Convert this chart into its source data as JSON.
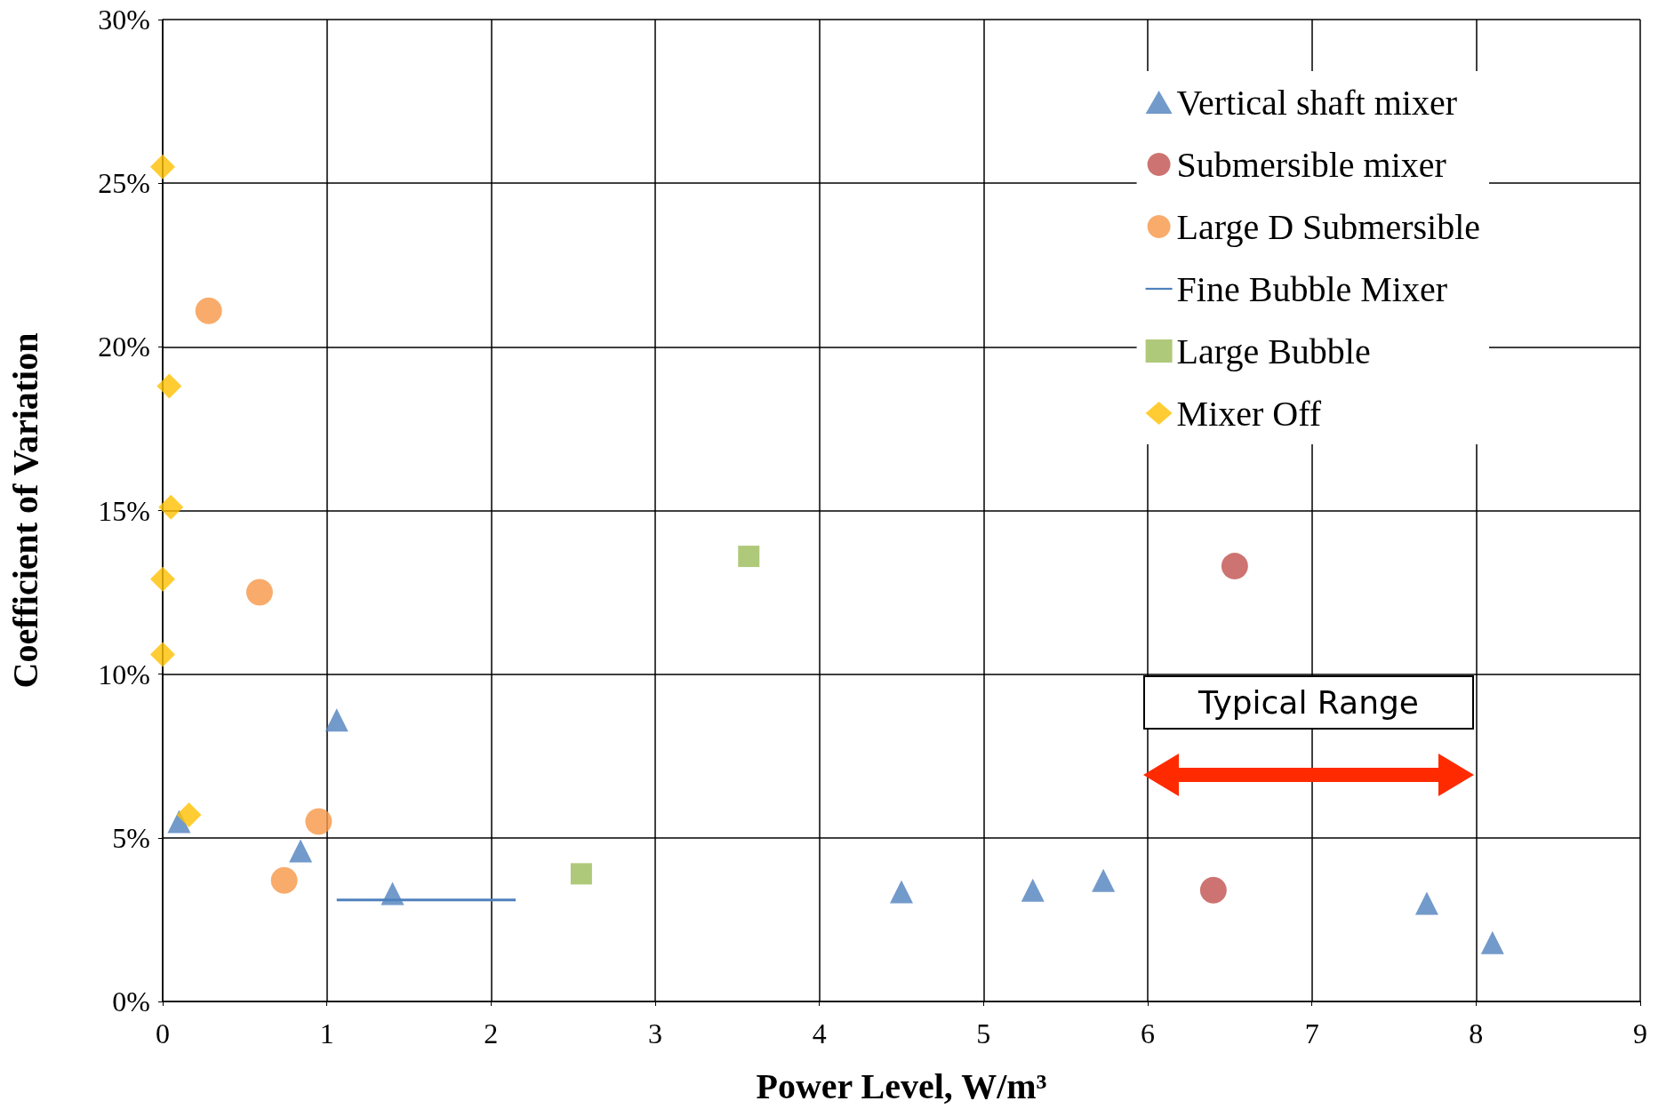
{
  "chart_data": {
    "type": "scatter",
    "xlabel": "Power Level, W/m³",
    "ylabel": "Coefficient of Variation",
    "xlim": [
      0,
      9
    ],
    "xticks": [
      0,
      1,
      2,
      3,
      4,
      5,
      6,
      7,
      8,
      9
    ],
    "ylim": [
      0,
      30
    ],
    "yticks": [
      {
        "value": 0,
        "label": "0%"
      },
      {
        "value": 5,
        "label": "5%"
      },
      {
        "value": 10,
        "label": "10%"
      },
      {
        "value": 15,
        "label": "15%"
      },
      {
        "value": 20,
        "label": "20%"
      },
      {
        "value": 25,
        "label": "25%"
      },
      {
        "value": 30,
        "label": "30%"
      }
    ],
    "grid": true,
    "legend": "top right",
    "series": [
      {
        "name": "Vertical shaft mixer",
        "color": "#4f81bd",
        "marker": "triangle",
        "x": [
          0.1,
          1.06,
          0.84,
          1.4,
          4.5,
          5.3,
          5.73,
          7.7,
          8.1
        ],
        "values": [
          5.5,
          8.6,
          4.6,
          3.3,
          3.35,
          3.4,
          3.7,
          3.0,
          1.8
        ]
      },
      {
        "name": "Submersible mixer",
        "color": "#c0504d",
        "marker": "circle",
        "x": [
          6.53,
          6.4
        ],
        "values": [
          13.3,
          3.4
        ]
      },
      {
        "name": "Large D Submersible",
        "color": "#f79646",
        "marker": "circle",
        "x": [
          0.28,
          0.59,
          0.95,
          0.74
        ],
        "values": [
          21.1,
          12.5,
          5.5,
          3.7
        ]
      },
      {
        "name": "Fine Bubble Mixer",
        "color": "#4f81bd",
        "type": "line",
        "marker": "none",
        "x": [
          1.06,
          2.15
        ],
        "values": [
          3.1,
          3.1
        ]
      },
      {
        "name": "Large Bubble",
        "color": "#9bbb59",
        "marker": "square",
        "x": [
          3.57,
          2.55
        ],
        "values": [
          13.6,
          3.9
        ]
      },
      {
        "name": "Mixer Off",
        "color": "#ffc000",
        "marker": "diamond",
        "x": [
          0.0,
          0.04,
          0.05,
          0.0,
          0.0,
          0.16
        ],
        "values": [
          25.5,
          18.8,
          15.1,
          12.9,
          10.6,
          5.7
        ]
      }
    ],
    "annotations": [
      "Typical Range"
    ]
  }
}
